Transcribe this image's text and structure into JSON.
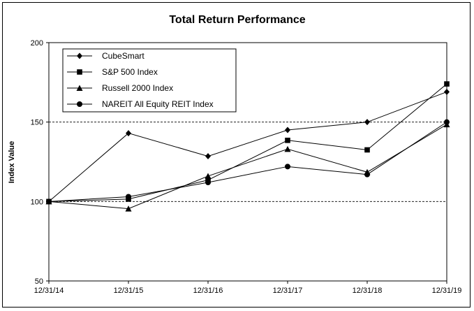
{
  "chart_data": {
    "type": "line",
    "title": "Total Return Performance",
    "ylabel": "Index Value",
    "xlabel": "",
    "categories": [
      "12/31/14",
      "12/31/15",
      "12/31/16",
      "12/31/17",
      "12/31/18",
      "12/31/19"
    ],
    "ylim": [
      50,
      200
    ],
    "yticks": [
      "50",
      "100",
      "150",
      "200"
    ],
    "grid": "horizontal dashed at 100 and 150",
    "legend_position": "top-left",
    "series": [
      {
        "name": "CubeSmart",
        "marker": "diamond",
        "values": [
          100,
          143,
          128.5,
          145,
          150,
          169
        ]
      },
      {
        "name": "S&P 500 Index",
        "marker": "square",
        "values": [
          100,
          101.5,
          113.5,
          138.5,
          132.5,
          174
        ]
      },
      {
        "name": "Russell 2000 Index",
        "marker": "triangle",
        "values": [
          100,
          95.5,
          116,
          133,
          118.5,
          148.5
        ]
      },
      {
        "name": "NAREIT All Equity REIT Index",
        "marker": "circle",
        "values": [
          100,
          103,
          112,
          122,
          117,
          150
        ]
      }
    ]
  }
}
